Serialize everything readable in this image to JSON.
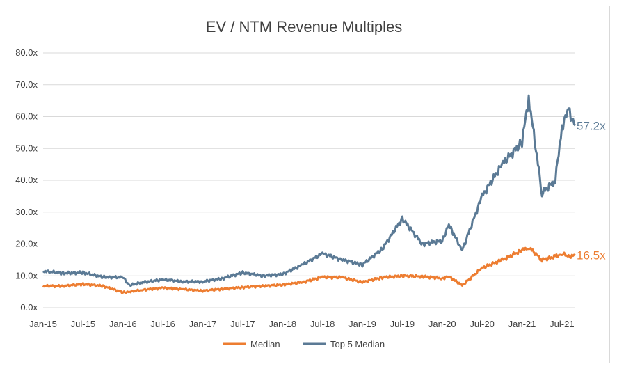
{
  "chart_data": {
    "type": "line",
    "title": "EV / NTM Revenue Multiples",
    "xlabel": "",
    "ylabel": "",
    "ylim": [
      0,
      80
    ],
    "y_ticks": [
      "0.0x",
      "10.0x",
      "20.0x",
      "30.0x",
      "40.0x",
      "50.0x",
      "60.0x",
      "70.0x",
      "80.0x"
    ],
    "x_ticks": [
      "Jan-15",
      "Jul-15",
      "Jan-16",
      "Jul-16",
      "Jan-17",
      "Jul-17",
      "Jan-18",
      "Jul-18",
      "Jan-19",
      "Jul-19",
      "Jan-20",
      "Jul-20",
      "Jan-21",
      "Jul-21"
    ],
    "grid": true,
    "legend_position": "bottom",
    "x": [
      "2015-01",
      "2015-04",
      "2015-07",
      "2015-10",
      "2016-01",
      "2016-02",
      "2016-04",
      "2016-07",
      "2016-10",
      "2017-01",
      "2017-04",
      "2017-07",
      "2017-10",
      "2018-01",
      "2018-04",
      "2018-07",
      "2018-10",
      "2019-01",
      "2019-04",
      "2019-07",
      "2019-10",
      "2020-01",
      "2020-02",
      "2020-04",
      "2020-07",
      "2020-10",
      "2021-01",
      "2021-02",
      "2021-04",
      "2021-06",
      "2021-07",
      "2021-08",
      "2021-09"
    ],
    "series": [
      {
        "name": "Median",
        "color": "#ED7D31",
        "end_label": "16.5x",
        "values": [
          6.8,
          6.8,
          7.4,
          6.8,
          4.8,
          5.0,
          5.6,
          6.2,
          5.8,
          5.3,
          5.9,
          6.4,
          6.8,
          7.2,
          8.0,
          9.6,
          9.5,
          8.0,
          9.5,
          10.0,
          9.8,
          9.2,
          9.8,
          7.0,
          12.5,
          15.0,
          18.0,
          19.0,
          15.0,
          16.0,
          17.0,
          16.0,
          16.5
        ]
      },
      {
        "name": "Top 5 Median",
        "color": "#5B7A95",
        "end_label": "57.2x",
        "values": [
          11.5,
          10.8,
          11.0,
          9.6,
          9.5,
          7.0,
          8.0,
          8.8,
          8.2,
          8.2,
          9.2,
          11.0,
          10.0,
          10.5,
          13.5,
          17.0,
          15.0,
          13.5,
          18.5,
          28.0,
          20.0,
          21.0,
          26.0,
          18.0,
          35.0,
          45.0,
          52.0,
          66.0,
          36.0,
          40.0,
          57.0,
          62.0,
          57.2
        ]
      }
    ]
  }
}
